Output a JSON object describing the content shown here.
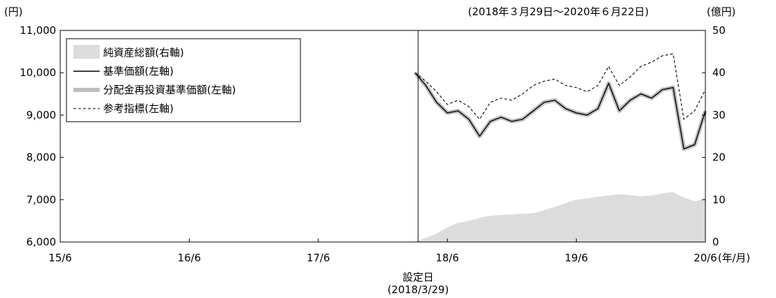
{
  "chart_data": {
    "type": "line",
    "period_label": "(2018年３月29日～2020年６月22日)",
    "left_unit": "(円)",
    "right_unit": "(億円)",
    "x_unit": "(年/月)",
    "x_ticks": [
      "15/6",
      "16/6",
      "17/6",
      "18/6",
      "19/6",
      "20/6"
    ],
    "y_left_ticks": [
      "11,000",
      "10,000",
      "9,000",
      "8,000",
      "7,000",
      "6,000"
    ],
    "y_right_ticks": [
      "50",
      "40",
      "30",
      "20",
      "10",
      "0"
    ],
    "ylim_left": [
      6000,
      11000
    ],
    "ylim_right": [
      0,
      50
    ],
    "x_range_months": [
      "2015-06",
      "2020-06"
    ],
    "inception": {
      "label": "設定日",
      "date": "(2018/3/29)"
    },
    "legend_placement": "top-left",
    "colors": {
      "net_assets": "#dcdcdc",
      "nav": "#000000",
      "reinvested": "#bdbdbd",
      "benchmark": "#000000"
    },
    "series": [
      {
        "name": "純資産総額(右軸)",
        "axis": "right",
        "style": "area",
        "x": [
          "2018-03",
          "2018-04",
          "2018-05",
          "2018-06",
          "2018-07",
          "2018-08",
          "2018-09",
          "2018-10",
          "2018-11",
          "2018-12",
          "2019-01",
          "2019-02",
          "2019-03",
          "2019-04",
          "2019-05",
          "2019-06",
          "2019-07",
          "2019-08",
          "2019-09",
          "2019-10",
          "2019-11",
          "2019-12",
          "2020-01",
          "2020-02",
          "2020-03",
          "2020-04",
          "2020-05",
          "2020-06"
        ],
        "values": [
          0,
          1,
          2,
          3.5,
          4.5,
          5,
          5.7,
          6.2,
          6.4,
          6.5,
          6.7,
          6.8,
          7.5,
          8.3,
          9.2,
          10,
          10.3,
          10.7,
          11,
          11.3,
          11.1,
          10.8,
          11,
          11.5,
          11.8,
          10.5,
          9.6,
          10.2
        ]
      },
      {
        "name": "基準価額(左軸)",
        "axis": "left",
        "style": "solid",
        "x": [
          "2018-03",
          "2018-04",
          "2018-05",
          "2018-06",
          "2018-07",
          "2018-08",
          "2018-09",
          "2018-10",
          "2018-11",
          "2018-12",
          "2019-01",
          "2019-02",
          "2019-03",
          "2019-04",
          "2019-05",
          "2019-06",
          "2019-07",
          "2019-08",
          "2019-09",
          "2019-10",
          "2019-11",
          "2019-12",
          "2020-01",
          "2020-02",
          "2020-03",
          "2020-04",
          "2020-05",
          "2020-06"
        ],
        "values": [
          10000,
          9700,
          9300,
          9050,
          9100,
          8900,
          8500,
          8850,
          8950,
          8850,
          8900,
          9100,
          9300,
          9350,
          9150,
          9050,
          9000,
          9150,
          9750,
          9100,
          9350,
          9500,
          9400,
          9600,
          9650,
          8200,
          8300,
          9100
        ]
      },
      {
        "name": "分配金再投資基準価額(左軸)",
        "axis": "left",
        "style": "thick-gray",
        "x": [
          "2018-03",
          "2018-04",
          "2018-05",
          "2018-06",
          "2018-07",
          "2018-08",
          "2018-09",
          "2018-10",
          "2018-11",
          "2018-12",
          "2019-01",
          "2019-02",
          "2019-03",
          "2019-04",
          "2019-05",
          "2019-06",
          "2019-07",
          "2019-08",
          "2019-09",
          "2019-10",
          "2019-11",
          "2019-12",
          "2020-01",
          "2020-02",
          "2020-03",
          "2020-04",
          "2020-05",
          "2020-06"
        ],
        "values": [
          10000,
          9700,
          9300,
          9050,
          9100,
          8900,
          8500,
          8850,
          8950,
          8850,
          8900,
          9100,
          9300,
          9350,
          9150,
          9050,
          9000,
          9150,
          9750,
          9100,
          9350,
          9500,
          9400,
          9600,
          9650,
          8200,
          8300,
          9100
        ]
      },
      {
        "name": "参考指標(左軸)",
        "axis": "left",
        "style": "dashed",
        "x": [
          "2018-03",
          "2018-04",
          "2018-05",
          "2018-06",
          "2018-07",
          "2018-08",
          "2018-09",
          "2018-10",
          "2018-11",
          "2018-12",
          "2019-01",
          "2019-02",
          "2019-03",
          "2019-04",
          "2019-05",
          "2019-06",
          "2019-07",
          "2019-08",
          "2019-09",
          "2019-10",
          "2019-11",
          "2019-12",
          "2020-01",
          "2020-02",
          "2020-03",
          "2020-04",
          "2020-05",
          "2020-06"
        ],
        "values": [
          10000,
          9800,
          9550,
          9250,
          9350,
          9200,
          8900,
          9300,
          9400,
          9350,
          9500,
          9700,
          9800,
          9850,
          9700,
          9650,
          9550,
          9700,
          10150,
          9700,
          9900,
          10150,
          10250,
          10400,
          10450,
          8900,
          9100,
          9600
        ]
      }
    ]
  }
}
